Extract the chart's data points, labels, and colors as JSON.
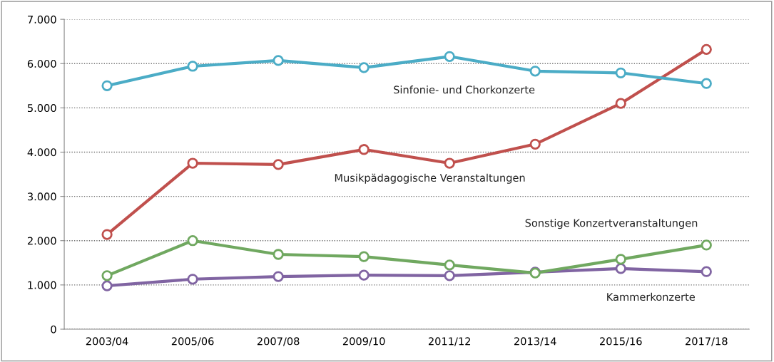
{
  "chart_data": {
    "type": "line",
    "categories": [
      "2003/04",
      "2005/06",
      "2007/08",
      "2009/10",
      "2011/12",
      "2013/14",
      "2015/16",
      "2017/18"
    ],
    "series": [
      {
        "name": "Sinfonie- und Chorkonzerte",
        "color": "#4bacc6",
        "values": [
          5500,
          5940,
          6070,
          5910,
          6160,
          5830,
          5790,
          5550
        ]
      },
      {
        "name": "Musikpädagogische Veranstaltungen",
        "color": "#c0504d",
        "values": [
          2140,
          3750,
          3720,
          4060,
          3750,
          4180,
          5100,
          6320
        ]
      },
      {
        "name": "Sonstige Konzertveranstaltungen",
        "color": "#70a860",
        "values": [
          1210,
          2000,
          1690,
          1640,
          1450,
          1270,
          1580,
          1900
        ]
      },
      {
        "name": "Kammerkonzerte",
        "color": "#8064a2",
        "values": [
          980,
          1130,
          1190,
          1220,
          1210,
          1290,
          1370,
          1300
        ]
      }
    ],
    "ylim": [
      0,
      7000
    ],
    "yticks": [
      0,
      {
        "value": 1000,
        "label": "1.000"
      },
      {
        "value": 2000,
        "label": "2.000"
      },
      {
        "value": 3000,
        "label": "3.000"
      },
      {
        "value": 4000,
        "label": "4.000"
      },
      {
        "value": 5000,
        "label": "5.000"
      },
      {
        "value": 6000,
        "label": "6.000"
      },
      {
        "value": 7000,
        "label": "7.000"
      }
    ],
    "grid": "y",
    "legend": false,
    "marker": "circle",
    "line_style": "solid"
  }
}
